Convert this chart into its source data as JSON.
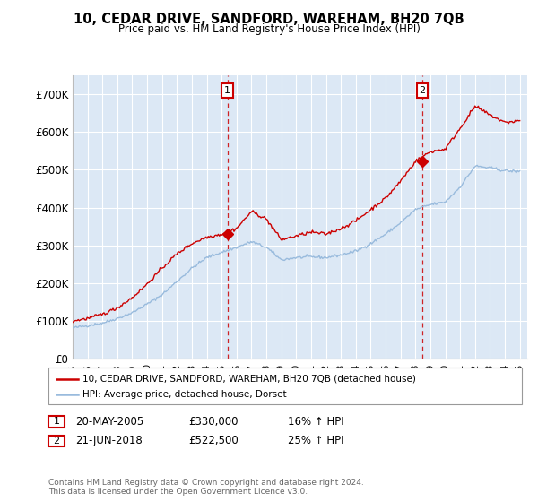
{
  "title": "10, CEDAR DRIVE, SANDFORD, WAREHAM, BH20 7QB",
  "subtitle": "Price paid vs. HM Land Registry's House Price Index (HPI)",
  "background_color": "#dce8f5",
  "ylim": [
    0,
    750000
  ],
  "yticks": [
    0,
    100000,
    200000,
    300000,
    400000,
    500000,
    600000,
    700000
  ],
  "ytick_labels": [
    "£0",
    "£100K",
    "£200K",
    "£300K",
    "£400K",
    "£500K",
    "£600K",
    "£700K"
  ],
  "xlim_start": 1995.0,
  "xlim_end": 2025.5,
  "sale1_x": 2005.38,
  "sale1_y": 330000,
  "sale2_x": 2018.47,
  "sale2_y": 522500,
  "legend_line1": "10, CEDAR DRIVE, SANDFORD, WAREHAM, BH20 7QB (detached house)",
  "legend_line2": "HPI: Average price, detached house, Dorset",
  "ann1_box": "1",
  "ann1_date": "20-MAY-2005",
  "ann1_price": "£330,000",
  "ann1_hpi": "16% ↑ HPI",
  "ann2_box": "2",
  "ann2_date": "21-JUN-2018",
  "ann2_price": "£522,500",
  "ann2_hpi": "25% ↑ HPI",
  "footer": "Contains HM Land Registry data © Crown copyright and database right 2024.\nThis data is licensed under the Open Government Licence v3.0.",
  "red_color": "#cc0000",
  "blue_color": "#99bbdd",
  "marker_box_color": "#cc0000",
  "hpi_control_x": [
    1995,
    1996,
    1997,
    1998,
    1999,
    2000,
    2001,
    2002,
    2003,
    2004,
    2005,
    2006,
    2007,
    2008,
    2009,
    2010,
    2011,
    2012,
    2013,
    2014,
    2015,
    2016,
    2017,
    2018,
    2019,
    2020,
    2021,
    2022,
    2023,
    2024,
    2025
  ],
  "hpi_control_y": [
    82000,
    88000,
    95000,
    107000,
    122000,
    145000,
    170000,
    205000,
    240000,
    268000,
    282000,
    295000,
    310000,
    295000,
    262000,
    268000,
    270000,
    268000,
    275000,
    285000,
    305000,
    330000,
    360000,
    395000,
    408000,
    415000,
    455000,
    510000,
    505000,
    498000,
    495000
  ],
  "red_control_x": [
    1995,
    1996,
    1997,
    1998,
    1999,
    2000,
    2001,
    2002,
    2003,
    2004,
    2005,
    2006,
    2007,
    2008,
    2009,
    2010,
    2011,
    2012,
    2013,
    2014,
    2015,
    2016,
    2017,
    2018,
    2019,
    2020,
    2021,
    2022,
    2023,
    2024,
    2025
  ],
  "red_control_y": [
    100000,
    107000,
    118000,
    135000,
    162000,
    198000,
    240000,
    278000,
    305000,
    322000,
    330000,
    345000,
    390000,
    370000,
    315000,
    325000,
    335000,
    330000,
    345000,
    365000,
    395000,
    425000,
    470000,
    522500,
    548000,
    555000,
    610000,
    668000,
    645000,
    625000,
    630000
  ]
}
